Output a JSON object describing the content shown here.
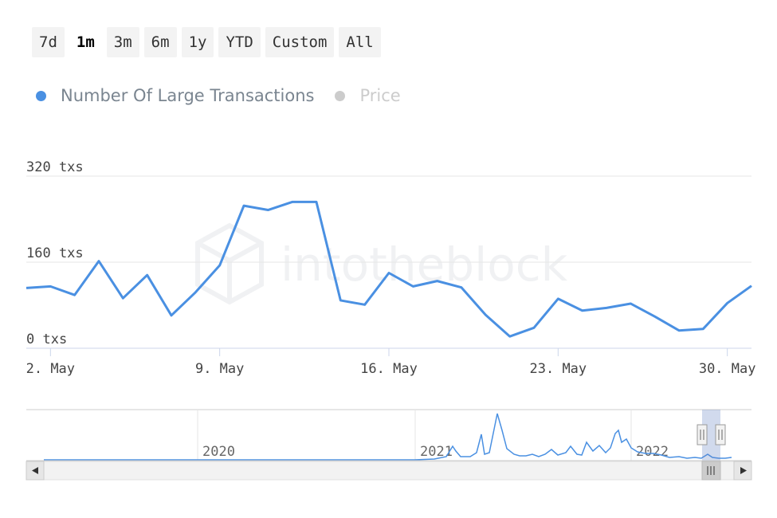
{
  "range_selector": {
    "buttons": [
      "7d",
      "1m",
      "3m",
      "6m",
      "1y",
      "YTD",
      "Custom",
      "All"
    ],
    "active": "1m"
  },
  "legend": [
    {
      "label": "Number Of Large Transactions",
      "color": "#4a90e2",
      "active": true
    },
    {
      "label": "Price",
      "color": "#cccccc",
      "active": false
    }
  ],
  "watermark": "intotheblock",
  "navigator": {
    "year_labels": [
      "2020",
      "2021",
      "2022"
    ],
    "handle_glyph": "||",
    "scroll_grip": "|||",
    "arrow_left": "◀",
    "arrow_right": "▶"
  },
  "colors": {
    "series": "#4a90e2",
    "inactive": "#cccccc",
    "grid": "#e6e6e6",
    "axis": "#ccd6eb",
    "nav_mask": "rgba(102,133,194,0.3)"
  },
  "chart_data": {
    "type": "line",
    "title": "",
    "xlabel": "",
    "ylabel": "",
    "y_unit": "txs",
    "ylim": [
      0,
      320
    ],
    "yticks": [
      0,
      160,
      320
    ],
    "ytick_labels": [
      "0 txs",
      "160 txs",
      "320 txs"
    ],
    "xlim": [
      1,
      31
    ],
    "xticks": [
      2,
      9,
      16,
      23,
      30
    ],
    "xtick_labels": [
      "2. May",
      "9. May",
      "16. May",
      "23. May",
      "30. May"
    ],
    "grid": true,
    "legend_position": "top-left",
    "series": [
      {
        "name": "Number Of Large Transactions",
        "x": [
          1,
          2,
          3,
          4,
          5,
          6,
          7,
          8,
          9,
          10,
          11,
          12,
          13,
          14,
          15,
          16,
          17,
          18,
          19,
          20,
          21,
          22,
          23,
          24,
          25,
          26,
          27,
          28,
          29,
          30,
          31
        ],
        "values": [
          112,
          115,
          99,
          162,
          93,
          136,
          61,
          104,
          154,
          265,
          257,
          272,
          272,
          89,
          81,
          140,
          115,
          125,
          113,
          62,
          22,
          38,
          92,
          70,
          75,
          83,
          59,
          33,
          36,
          84,
          116
        ]
      }
    ]
  }
}
